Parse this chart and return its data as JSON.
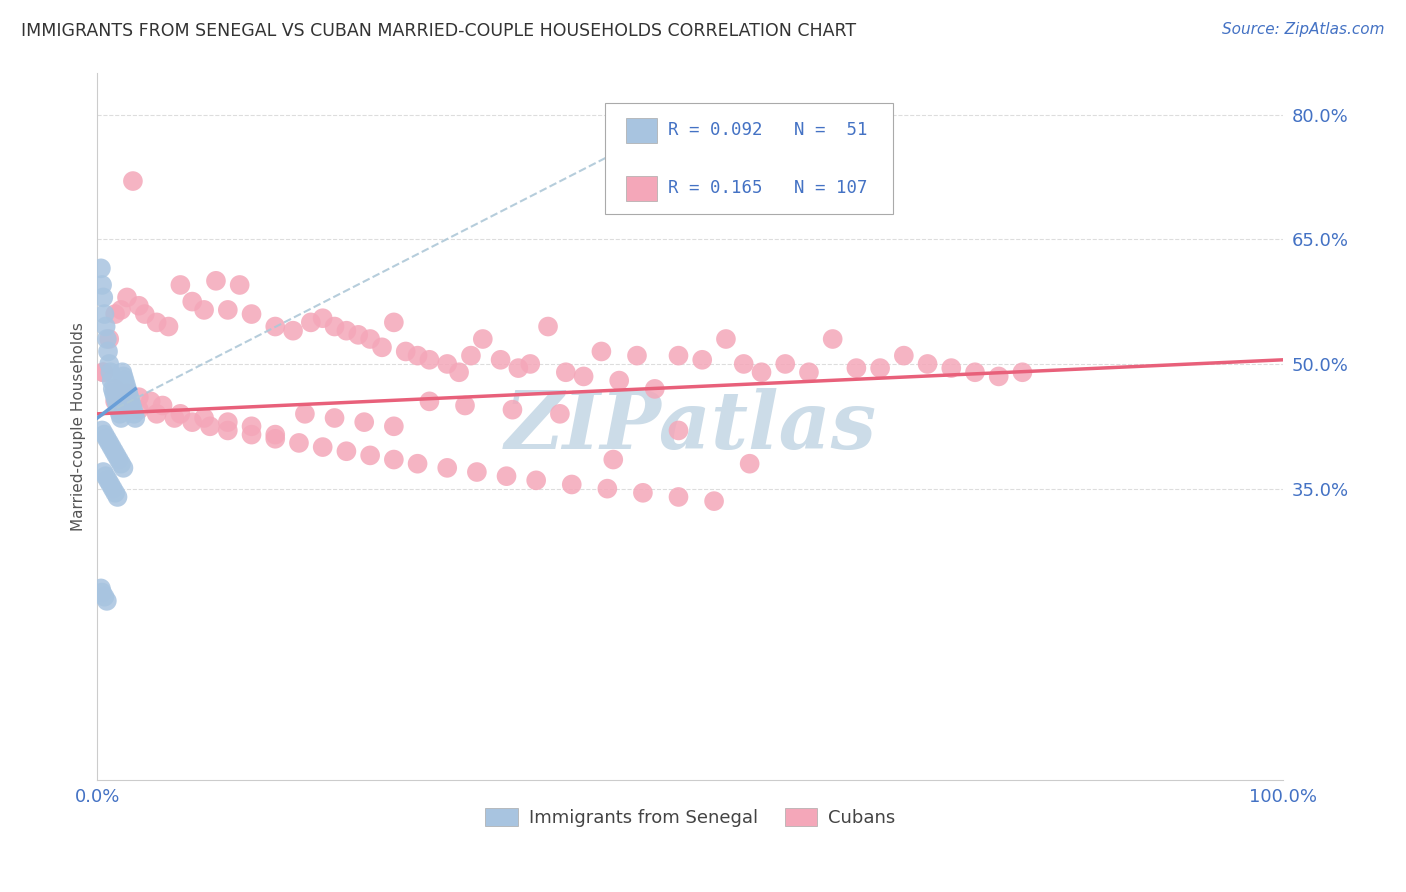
{
  "title": "IMMIGRANTS FROM SENEGAL VS CUBAN MARRIED-COUPLE HOUSEHOLDS CORRELATION CHART",
  "source": "Source: ZipAtlas.com",
  "ylabel": "Married-couple Households",
  "r_senegal": 0.092,
  "n_senegal": 51,
  "r_cuban": 0.165,
  "n_cuban": 107,
  "xlim": [
    0.0,
    1.0
  ],
  "ylim": [
    0.0,
    0.85
  ],
  "yticks": [
    0.35,
    0.5,
    0.65,
    0.8
  ],
  "ytick_labels": [
    "35.0%",
    "50.0%",
    "65.0%",
    "80.0%"
  ],
  "xticks": [
    0.0,
    0.2,
    0.4,
    0.6,
    0.8,
    1.0
  ],
  "xtick_labels": [
    "0.0%",
    "",
    "",
    "",
    "",
    "100.0%"
  ],
  "color_senegal": "#a8c4e0",
  "color_cuban": "#f4a7b9",
  "line_color_senegal": "#6a9fd8",
  "line_color_cuban": "#e8607a",
  "dashed_line_color": "#aec8d8",
  "background_color": "#ffffff",
  "grid_color": "#dddddd",
  "title_color": "#333333",
  "axis_label_color": "#555555",
  "tick_color": "#4472c4",
  "legend_r_color": "#4472c4",
  "watermark_color": "#ccdce8",
  "senegal_x": [
    0.003,
    0.004,
    0.005,
    0.006,
    0.007,
    0.008,
    0.009,
    0.01,
    0.011,
    0.012,
    0.013,
    0.014,
    0.015,
    0.016,
    0.017,
    0.018,
    0.019,
    0.02,
    0.021,
    0.022,
    0.023,
    0.024,
    0.025,
    0.026,
    0.027,
    0.028,
    0.029,
    0.03,
    0.031,
    0.032,
    0.004,
    0.006,
    0.008,
    0.01,
    0.012,
    0.014,
    0.016,
    0.018,
    0.02,
    0.022,
    0.005,
    0.007,
    0.009,
    0.011,
    0.013,
    0.015,
    0.017,
    0.003,
    0.004,
    0.006,
    0.008
  ],
  "senegal_y": [
    0.615,
    0.595,
    0.58,
    0.56,
    0.545,
    0.53,
    0.515,
    0.5,
    0.49,
    0.48,
    0.47,
    0.465,
    0.46,
    0.455,
    0.45,
    0.445,
    0.44,
    0.435,
    0.49,
    0.485,
    0.48,
    0.475,
    0.47,
    0.465,
    0.46,
    0.455,
    0.45,
    0.445,
    0.44,
    0.435,
    0.42,
    0.415,
    0.41,
    0.405,
    0.4,
    0.395,
    0.39,
    0.385,
    0.38,
    0.375,
    0.37,
    0.365,
    0.36,
    0.355,
    0.35,
    0.345,
    0.34,
    0.23,
    0.225,
    0.22,
    0.215
  ],
  "cuban_x": [
    0.005,
    0.01,
    0.015,
    0.02,
    0.025,
    0.03,
    0.035,
    0.04,
    0.05,
    0.06,
    0.07,
    0.08,
    0.09,
    0.1,
    0.11,
    0.12,
    0.13,
    0.15,
    0.165,
    0.18,
    0.19,
    0.2,
    0.21,
    0.22,
    0.23,
    0.24,
    0.25,
    0.26,
    0.27,
    0.28,
    0.295,
    0.305,
    0.315,
    0.325,
    0.34,
    0.355,
    0.365,
    0.38,
    0.395,
    0.41,
    0.425,
    0.44,
    0.455,
    0.47,
    0.49,
    0.51,
    0.53,
    0.545,
    0.56,
    0.58,
    0.6,
    0.62,
    0.64,
    0.66,
    0.68,
    0.7,
    0.72,
    0.74,
    0.76,
    0.78,
    0.015,
    0.025,
    0.035,
    0.05,
    0.065,
    0.08,
    0.095,
    0.11,
    0.13,
    0.15,
    0.17,
    0.19,
    0.21,
    0.23,
    0.25,
    0.27,
    0.295,
    0.32,
    0.345,
    0.37,
    0.4,
    0.43,
    0.46,
    0.49,
    0.52,
    0.005,
    0.015,
    0.025,
    0.035,
    0.045,
    0.055,
    0.07,
    0.09,
    0.11,
    0.13,
    0.15,
    0.175,
    0.2,
    0.225,
    0.25,
    0.28,
    0.31,
    0.35,
    0.39,
    0.435,
    0.49,
    0.55
  ],
  "cuban_y": [
    0.49,
    0.53,
    0.56,
    0.565,
    0.58,
    0.72,
    0.57,
    0.56,
    0.55,
    0.545,
    0.595,
    0.575,
    0.565,
    0.6,
    0.565,
    0.595,
    0.56,
    0.545,
    0.54,
    0.55,
    0.555,
    0.545,
    0.54,
    0.535,
    0.53,
    0.52,
    0.55,
    0.515,
    0.51,
    0.505,
    0.5,
    0.49,
    0.51,
    0.53,
    0.505,
    0.495,
    0.5,
    0.545,
    0.49,
    0.485,
    0.515,
    0.48,
    0.51,
    0.47,
    0.51,
    0.505,
    0.53,
    0.5,
    0.49,
    0.5,
    0.49,
    0.53,
    0.495,
    0.495,
    0.51,
    0.5,
    0.495,
    0.49,
    0.485,
    0.49,
    0.455,
    0.45,
    0.445,
    0.44,
    0.435,
    0.43,
    0.425,
    0.42,
    0.415,
    0.41,
    0.405,
    0.4,
    0.395,
    0.39,
    0.385,
    0.38,
    0.375,
    0.37,
    0.365,
    0.36,
    0.355,
    0.35,
    0.345,
    0.34,
    0.335,
    0.49,
    0.47,
    0.465,
    0.46,
    0.455,
    0.45,
    0.44,
    0.435,
    0.43,
    0.425,
    0.415,
    0.44,
    0.435,
    0.43,
    0.425,
    0.455,
    0.45,
    0.445,
    0.44,
    0.385,
    0.42,
    0.38
  ],
  "senegal_line_x": [
    0.0,
    0.032
  ],
  "senegal_line_y": [
    0.435,
    0.47
  ],
  "dashed_line_x": [
    0.0,
    0.5
  ],
  "dashed_line_y": [
    0.435,
    0.8
  ],
  "cuban_line_x": [
    0.0,
    1.0
  ],
  "cuban_line_y": [
    0.44,
    0.505
  ]
}
